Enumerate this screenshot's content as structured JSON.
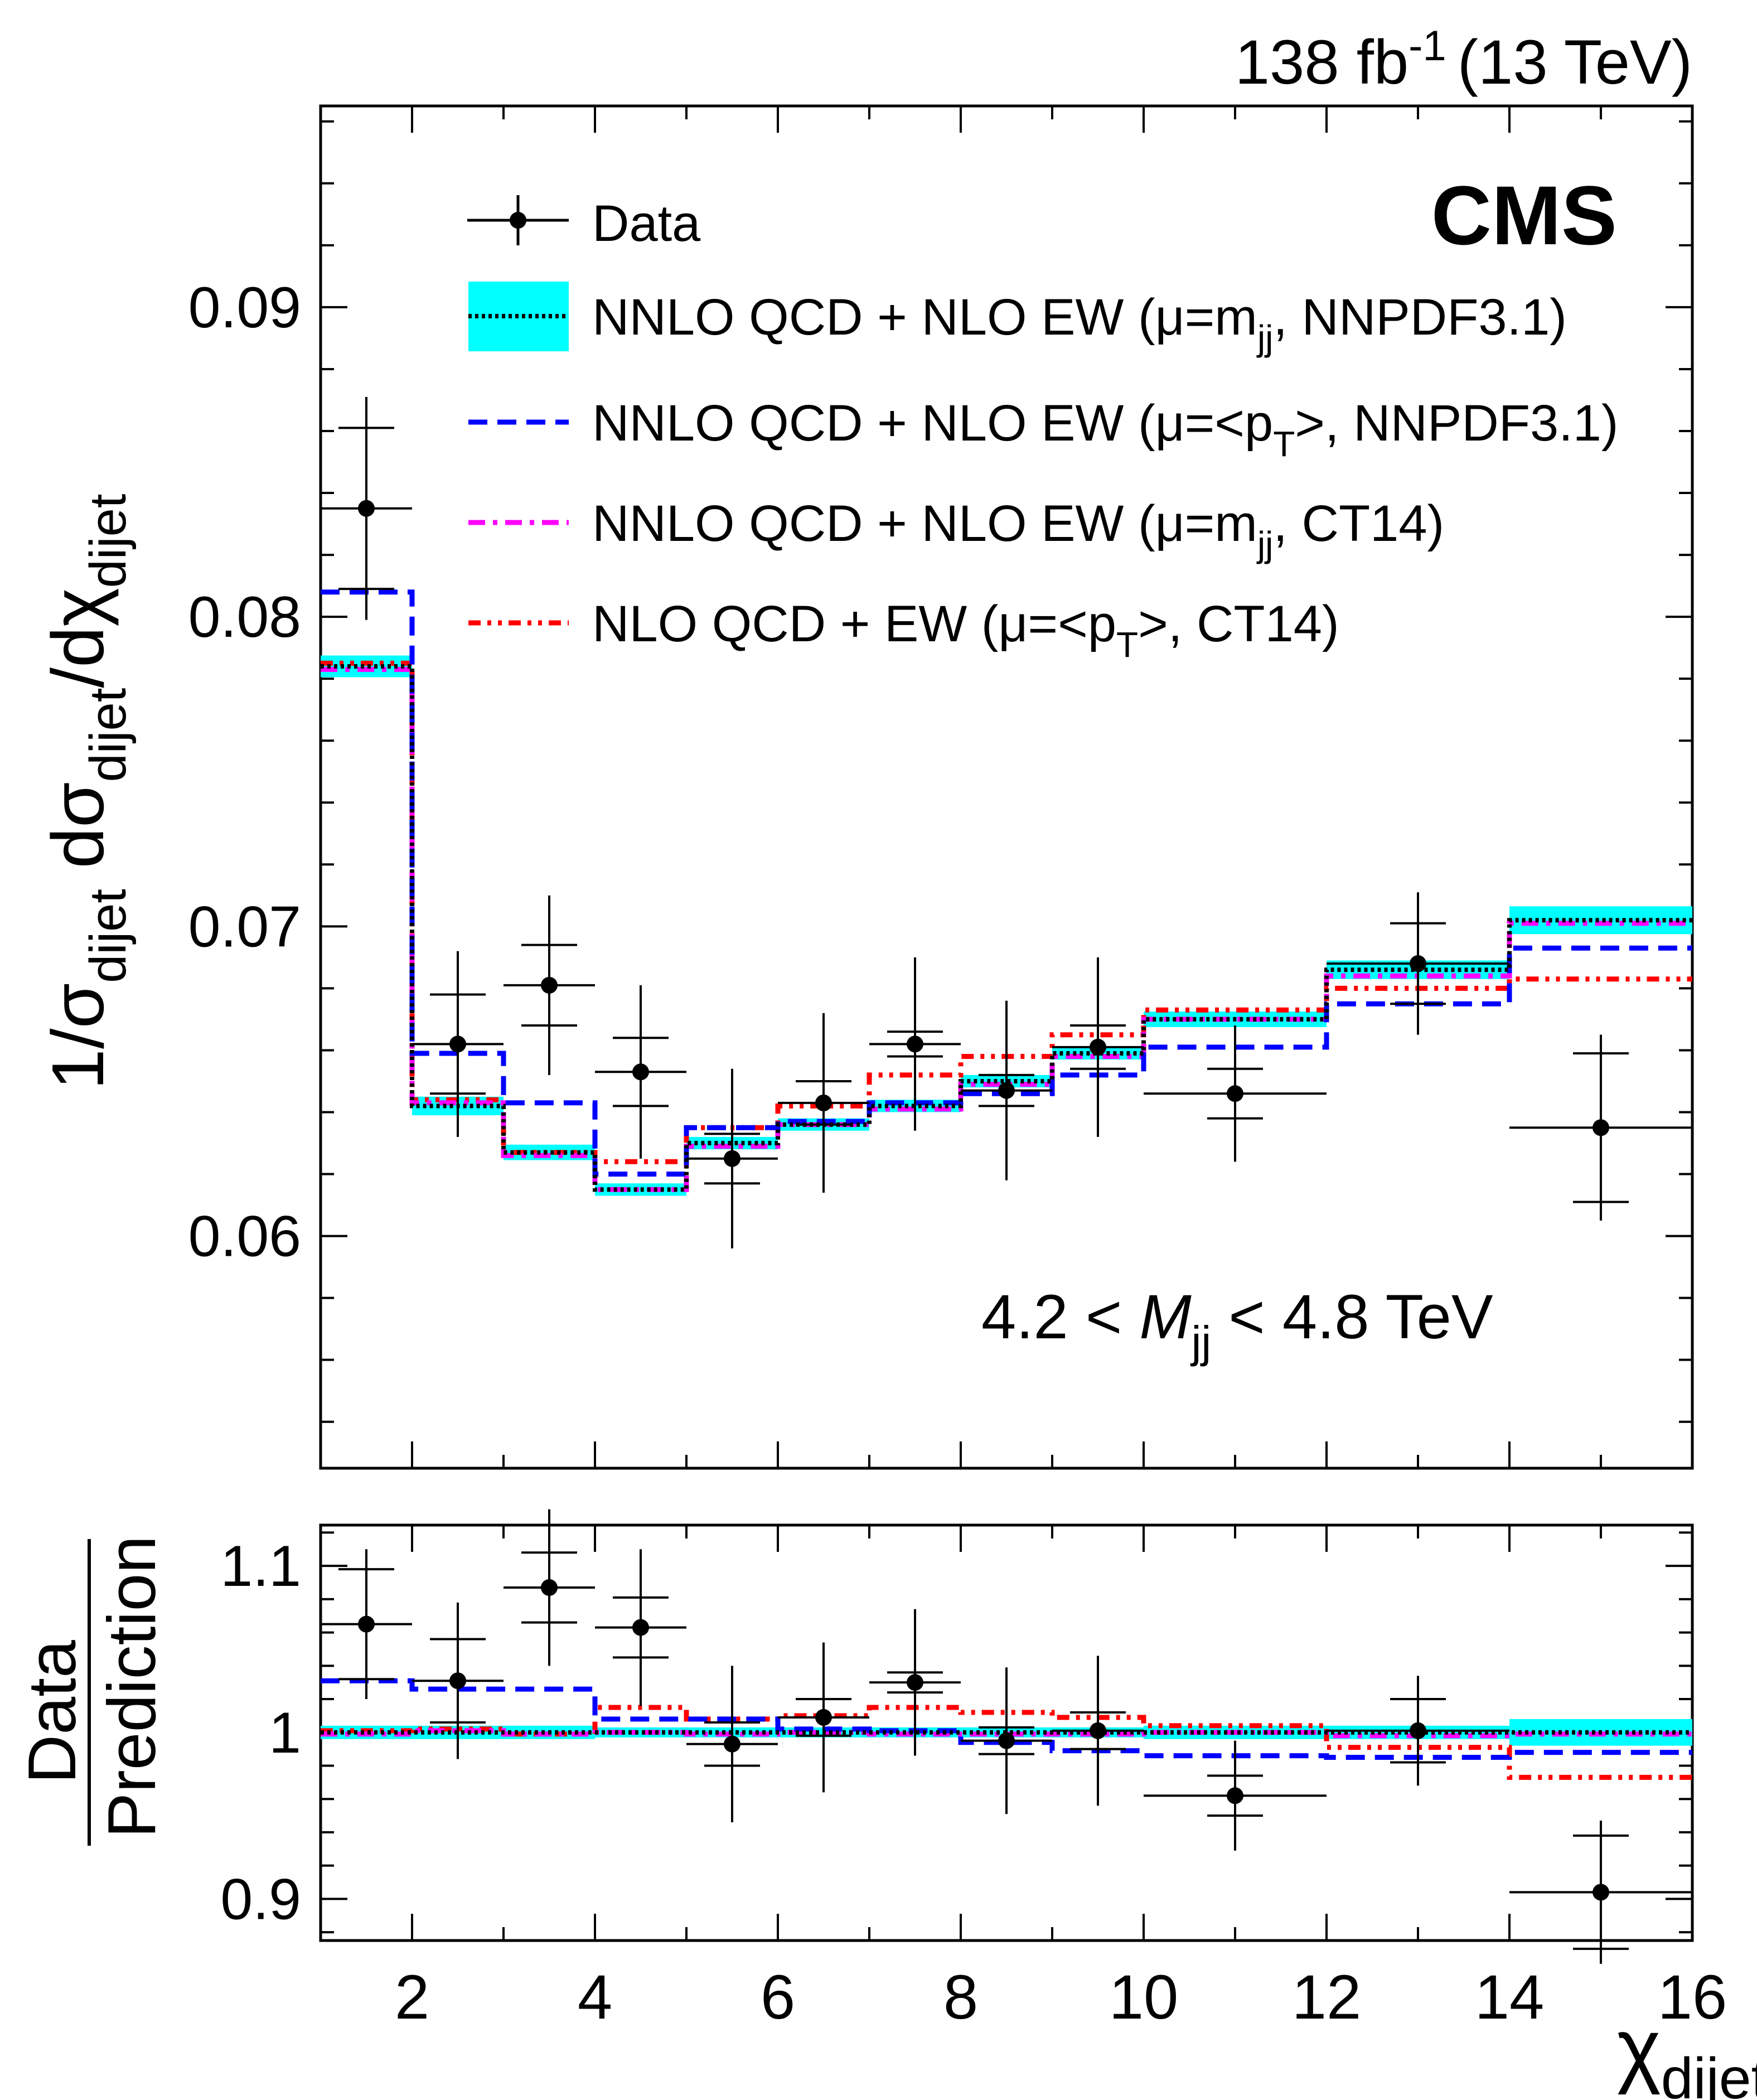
{
  "header": {
    "lumi_value": "138 fb",
    "lumi_exponent": "-1",
    "energy": "(13 TeV)",
    "experiment": "CMS"
  },
  "annotation": {
    "prefix": "4.2 < ",
    "variable": "M",
    "subscript": "jj",
    "suffix": " < 4.8 TeV"
  },
  "legend": {
    "data_label": "Data",
    "entries": [
      {
        "pre": "NNLO QCD + NLO EW (μ=m",
        "sub": "jj",
        "post": ", NNPDF3.1)"
      },
      {
        "pre": "NNLO QCD + NLO EW (μ=<p",
        "sub": "T",
        "post": ">, NNPDF3.1)"
      },
      {
        "pre": "NNLO QCD + NLO EW (μ=m",
        "sub": "jj",
        "post": ", CT14)"
      },
      {
        "pre": "NLO QCD + EW (μ=<p",
        "sub": "T",
        "post": ">, CT14)"
      }
    ]
  },
  "y_axis_top": {
    "part1": "1/σ",
    "sub1": "dijet",
    "part2": " dσ",
    "sub2": "dijet",
    "part3": "/dχ",
    "sub3": "dijet"
  },
  "y_axis_bottom": {
    "numerator": "Data",
    "denominator": "Prediction"
  },
  "x_axis": {
    "symbol": "χ",
    "subscript": "dijet"
  },
  "colors": {
    "band": "#00ffff",
    "nnpdf_mjj": "#000000",
    "nnpdf_pt": "#0000ff",
    "ct14_mjj": "#ff00ff",
    "nlo_ct14_pt": "#ff0000",
    "data": "#000000"
  },
  "chart_data": [
    {
      "type": "line",
      "panel": "main",
      "xlim": [
        1,
        16
      ],
      "ylim": [
        0.0525,
        0.0965
      ],
      "x_ticks": [
        2,
        4,
        6,
        8,
        10,
        12,
        14,
        16
      ],
      "x_tick_labels": [
        "2",
        "4",
        "6",
        "8",
        "10",
        "12",
        "14",
        "16"
      ],
      "y_ticks": [
        0.06,
        0.07,
        0.08,
        0.09
      ],
      "y_tick_labels": [
        "0.06",
        "0.07",
        "0.08",
        "0.09"
      ],
      "bin_edges": [
        1,
        2,
        3,
        4,
        5,
        6,
        7,
        8,
        9,
        10,
        12,
        14,
        16
      ],
      "data": {
        "name": "Data",
        "x": [
          1.5,
          2.5,
          3.5,
          4.5,
          5.5,
          6.5,
          7.5,
          8.5,
          9.5,
          11,
          13,
          15
        ],
        "y": [
          0.0835,
          0.0662,
          0.0681,
          0.0653,
          0.0625,
          0.0643,
          0.0662,
          0.0647,
          0.0661,
          0.0646,
          0.0688,
          0.0635
        ],
        "err_total": [
          0.0036,
          0.003,
          0.0029,
          0.0028,
          0.0029,
          0.0029,
          0.0028,
          0.0029,
          0.0029,
          0.0022,
          0.0023,
          0.003
        ],
        "err_inner": [
          0.0026,
          0.0016,
          0.0013,
          0.0011,
          0.0008,
          0.0007,
          0.0004,
          0.0005,
          0.0007,
          0.0008,
          0.0013,
          0.0024
        ]
      },
      "band": {
        "name": "NNLO QCD + NLO EW (μ=mjj, NNPDF3.1) uncertainty",
        "half_width": [
          0.00035,
          0.0003,
          0.00025,
          0.0002,
          0.0002,
          0.0002,
          0.0002,
          0.0002,
          0.0002,
          0.00025,
          0.0003,
          0.00045
        ]
      },
      "series": [
        {
          "name": "NNLO QCD + NLO EW (μ=mjj, NNPDF3.1)",
          "style": "dotted",
          "color_key": "nnpdf_mjj",
          "values": [
            0.0784,
            0.0642,
            0.0627,
            0.0615,
            0.063,
            0.0636,
            0.0642,
            0.065,
            0.0659,
            0.067,
            0.0686,
            0.0702
          ]
        },
        {
          "name": "NNLO QCD + NLO EW (μ=<pT>, NNPDF3.1)",
          "style": "dashed",
          "color_key": "nnpdf_pt",
          "values": [
            0.0808,
            0.0659,
            0.0643,
            0.062,
            0.0635,
            0.0637,
            0.0643,
            0.0646,
            0.0652,
            0.0661,
            0.0675,
            0.0693
          ]
        },
        {
          "name": "NNLO QCD + NLO EW (μ=mjj, CT14)",
          "style": "dashdot",
          "color_key": "ct14_mjj",
          "values": [
            0.0783,
            0.0643,
            0.0626,
            0.0615,
            0.0629,
            0.0636,
            0.0641,
            0.0649,
            0.0658,
            0.067,
            0.0684,
            0.0701
          ]
        },
        {
          "name": "NLO QCD + EW (μ=<pT>, CT14)",
          "style": "dashdotdot",
          "color_key": "nlo_ct14_pt",
          "values": [
            0.0785,
            0.0644,
            0.0627,
            0.0624,
            0.0635,
            0.0642,
            0.0652,
            0.0658,
            0.0665,
            0.0673,
            0.068,
            0.0683
          ]
        }
      ]
    },
    {
      "type": "line",
      "panel": "ratio",
      "xlim": [
        1,
        16
      ],
      "ylim": [
        0.875,
        1.1245
      ],
      "x_ticks": [
        2,
        4,
        6,
        8,
        10,
        12,
        14,
        16
      ],
      "x_tick_labels": [
        "2",
        "4",
        "6",
        "8",
        "10",
        "12",
        "14",
        "16"
      ],
      "y_ticks": [
        0.9,
        1.0,
        1.1
      ],
      "y_tick_labels": [
        "0.9",
        "1",
        "1.1"
      ],
      "bin_edges": [
        1,
        2,
        3,
        4,
        5,
        6,
        7,
        8,
        9,
        10,
        12,
        14,
        16
      ],
      "data": {
        "name": "Data / Prediction",
        "x": [
          1.5,
          2.5,
          3.5,
          4.5,
          5.5,
          6.5,
          7.5,
          8.5,
          9.5,
          11,
          13,
          15
        ],
        "y": [
          1.065,
          1.031,
          1.087,
          1.063,
          0.993,
          1.009,
          1.03,
          0.995,
          1.001,
          0.962,
          1.001,
          0.904
        ],
        "err_total": [
          0.045,
          0.047,
          0.047,
          0.047,
          0.047,
          0.045,
          0.044,
          0.044,
          0.045,
          0.033,
          0.033,
          0.043
        ],
        "err_inner": [
          0.033,
          0.025,
          0.021,
          0.018,
          0.013,
          0.011,
          0.006,
          0.008,
          0.011,
          0.012,
          0.019,
          0.034
        ]
      },
      "band": {
        "name": "relative uncertainty",
        "half_width": [
          0.004,
          0.004,
          0.004,
          0.003,
          0.003,
          0.003,
          0.003,
          0.003,
          0.003,
          0.004,
          0.004,
          0.008
        ]
      },
      "series": [
        {
          "name": "NNLO QCD + NLO EW (μ=mjj, NNPDF3.1)",
          "style": "dotted",
          "color_key": "nnpdf_mjj",
          "values": [
            1.0,
            1.0,
            1.0,
            1.0,
            1.0,
            1.0,
            1.0,
            1.0,
            1.0,
            1.0,
            1.0,
            1.0
          ]
        },
        {
          "name": "NNLO QCD + NLO EW (μ=<pT>, NNPDF3.1)",
          "style": "dashed",
          "color_key": "nnpdf_pt",
          "values": [
            1.031,
            1.026,
            1.026,
            1.008,
            1.008,
            1.002,
            1.001,
            0.994,
            0.989,
            0.986,
            0.985,
            0.988
          ]
        },
        {
          "name": "NNLO QCD + NLO EW (μ=mjj, CT14)",
          "style": "dashdot",
          "color_key": "ct14_mjj",
          "values": [
            0.999,
            1.001,
            0.999,
            1.0,
            0.999,
            1.0,
            0.999,
            0.999,
            0.999,
            1.0,
            0.998,
            0.999
          ]
        },
        {
          "name": "NLO QCD + EW (μ=<pT>, CT14)",
          "style": "dashdotdot",
          "color_key": "nlo_ct14_pt",
          "values": [
            1.001,
            1.002,
            0.999,
            1.015,
            1.008,
            1.01,
            1.015,
            1.012,
            1.009,
            1.004,
            0.991,
            0.973
          ]
        }
      ]
    }
  ]
}
